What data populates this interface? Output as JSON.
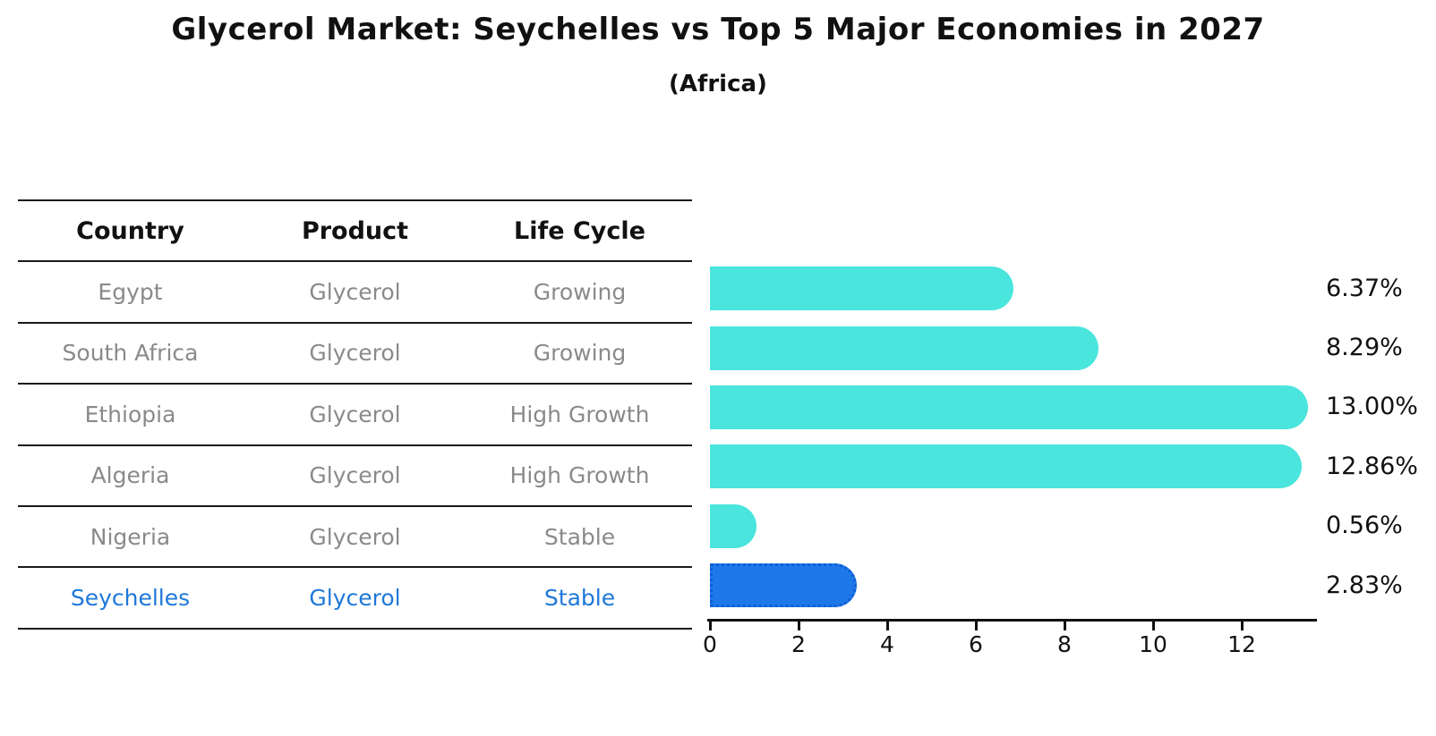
{
  "title": "Glycerol Market: Seychelles vs Top 5 Major Economies in 2027",
  "subtitle": "(Africa)",
  "colors": {
    "bar": "#4ae5dc",
    "highlight_bar": "#1e78e8",
    "highlight_border": "#0e5fd6",
    "highlight_text": "#1e78d9",
    "table_text": "#8a8a8a",
    "ink": "#111111",
    "background": "#ffffff"
  },
  "table": {
    "headers": [
      "Country",
      "Product",
      "Life Cycle"
    ],
    "rows": [
      {
        "country": "Egypt",
        "product": "Glycerol",
        "life_cycle": "Growing",
        "highlight": false
      },
      {
        "country": "South Africa",
        "product": "Glycerol",
        "life_cycle": "Growing",
        "highlight": false
      },
      {
        "country": "Ethiopia",
        "product": "Glycerol",
        "life_cycle": "High Growth",
        "highlight": false
      },
      {
        "country": "Algeria",
        "product": "Glycerol",
        "life_cycle": "High Growth",
        "highlight": false
      },
      {
        "country": "Nigeria",
        "product": "Glycerol",
        "life_cycle": "Stable",
        "highlight": false
      },
      {
        "country": "Seychelles",
        "product": "Glycerol",
        "life_cycle": "Stable",
        "highlight": true
      }
    ]
  },
  "chart_data": {
    "type": "bar",
    "orientation": "horizontal",
    "title": "Glycerol Market: Seychelles vs Top 5 Major Economies in 2027 (Africa)",
    "categories": [
      "Egypt",
      "South Africa",
      "Ethiopia",
      "Algeria",
      "Nigeria",
      "Seychelles"
    ],
    "values": [
      6.37,
      8.29,
      13.0,
      12.86,
      0.56,
      2.83
    ],
    "value_labels": [
      "6.37%",
      "8.29%",
      "13.00%",
      "12.86%",
      "0.56%",
      "2.83%"
    ],
    "unit": "%",
    "xticks": [
      0,
      2,
      4,
      6,
      8,
      10,
      12
    ],
    "xlim": [
      0,
      13.7
    ],
    "grid": false,
    "legend": false,
    "highlight_category": "Seychelles",
    "bar_style": "rounded-right-cap",
    "highlight_style": "dotted-border"
  }
}
